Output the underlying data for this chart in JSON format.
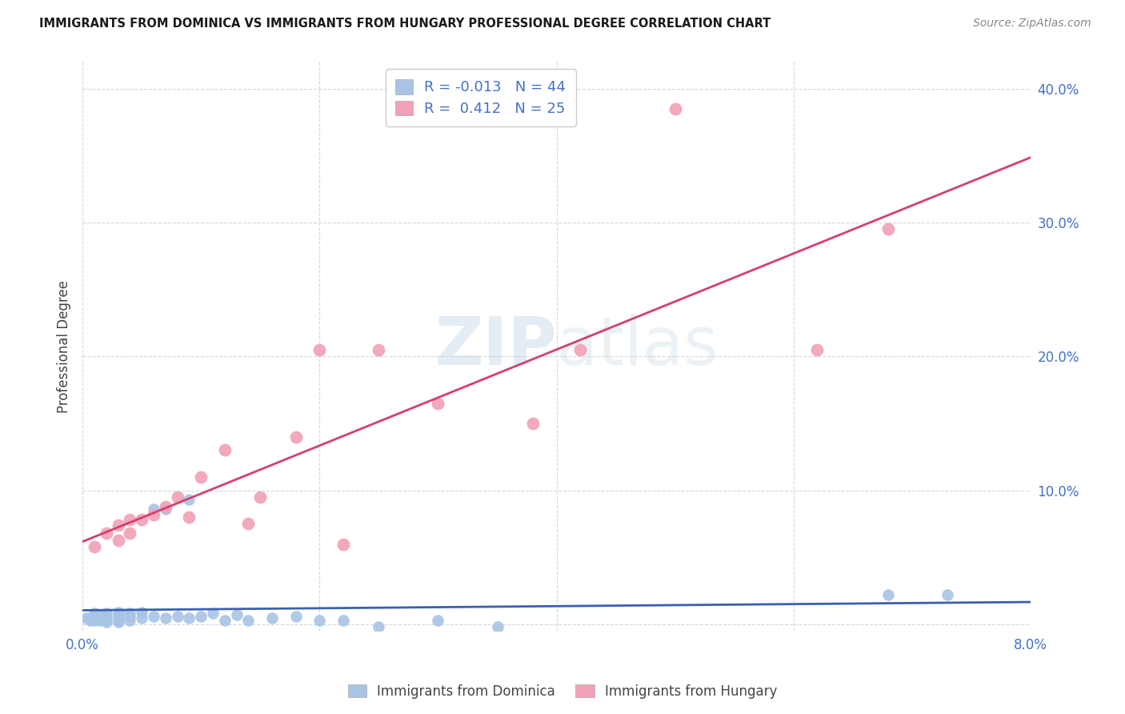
{
  "title": "IMMIGRANTS FROM DOMINICA VS IMMIGRANTS FROM HUNGARY PROFESSIONAL DEGREE CORRELATION CHART",
  "source": "Source: ZipAtlas.com",
  "ylabel": "Professional Degree",
  "xlim": [
    0.0,
    0.08
  ],
  "ylim": [
    -0.005,
    0.42
  ],
  "dominica_color": "#a8c4e5",
  "hungary_color": "#f2a0b5",
  "dominica_R": -0.013,
  "dominica_N": 44,
  "hungary_R": 0.412,
  "hungary_N": 25,
  "dominica_line_color": "#3a60b0",
  "hungary_line_color": "#d44070",
  "legend_label_1": "Immigrants from Dominica",
  "legend_label_2": "Immigrants from Hungary",
  "dominica_x": [
    0.0003,
    0.0005,
    0.0007,
    0.001,
    0.001,
    0.001,
    0.0012,
    0.0015,
    0.0015,
    0.002,
    0.002,
    0.002,
    0.002,
    0.003,
    0.003,
    0.003,
    0.003,
    0.003,
    0.004,
    0.004,
    0.004,
    0.005,
    0.005,
    0.006,
    0.006,
    0.007,
    0.007,
    0.008,
    0.009,
    0.009,
    0.01,
    0.011,
    0.012,
    0.013,
    0.014,
    0.016,
    0.018,
    0.02,
    0.022,
    0.025,
    0.03,
    0.035,
    0.068,
    0.073
  ],
  "dominica_y": [
    0.005,
    0.004,
    0.003,
    0.008,
    0.006,
    0.003,
    0.005,
    0.007,
    0.003,
    0.008,
    0.006,
    0.004,
    0.002,
    0.009,
    0.007,
    0.005,
    0.003,
    0.002,
    0.008,
    0.006,
    0.003,
    0.009,
    0.005,
    0.086,
    0.006,
    0.086,
    0.005,
    0.006,
    0.093,
    0.005,
    0.006,
    0.008,
    0.003,
    0.007,
    0.003,
    0.005,
    0.006,
    0.003,
    0.003,
    -0.002,
    0.003,
    -0.002,
    0.022,
    0.022
  ],
  "hungary_x": [
    0.001,
    0.002,
    0.003,
    0.003,
    0.004,
    0.004,
    0.005,
    0.006,
    0.007,
    0.008,
    0.009,
    0.01,
    0.012,
    0.014,
    0.015,
    0.018,
    0.02,
    0.022,
    0.025,
    0.03,
    0.038,
    0.042,
    0.05,
    0.062,
    0.068
  ],
  "hungary_y": [
    0.058,
    0.068,
    0.063,
    0.074,
    0.078,
    0.068,
    0.078,
    0.082,
    0.088,
    0.095,
    0.08,
    0.11,
    0.13,
    0.075,
    0.095,
    0.14,
    0.205,
    0.06,
    0.205,
    0.165,
    0.15,
    0.205,
    0.385,
    0.205,
    0.295
  ]
}
